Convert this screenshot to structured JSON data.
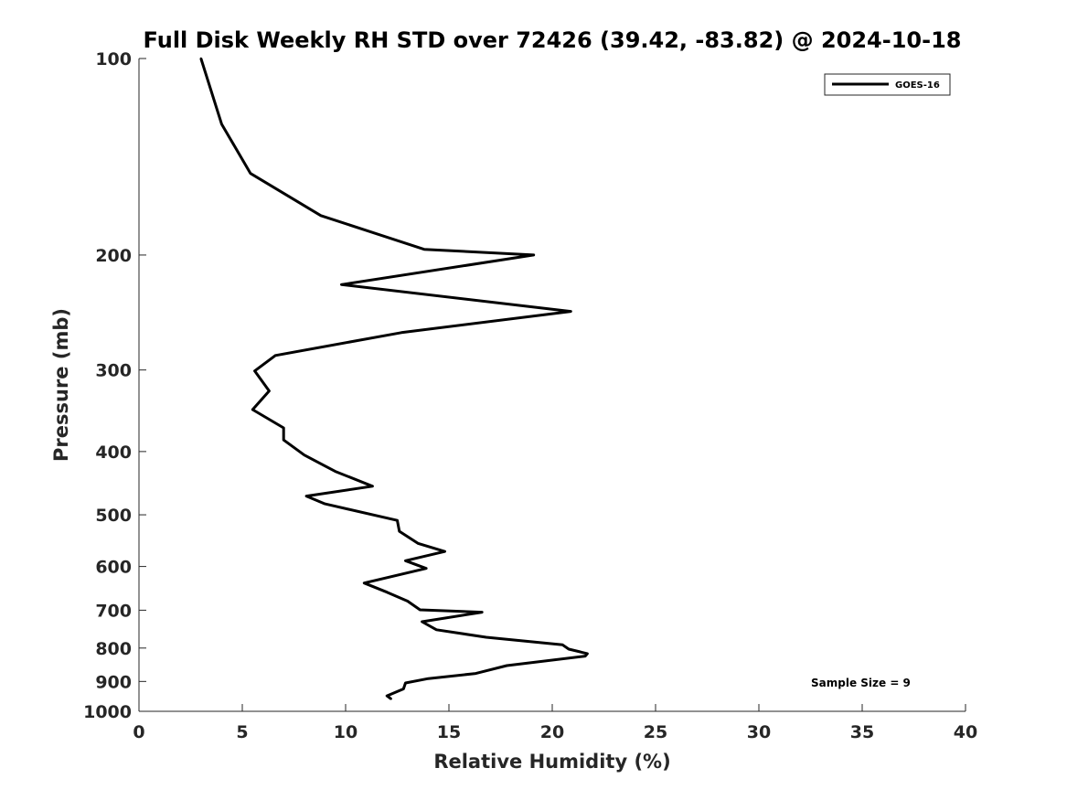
{
  "chart_data": {
    "type": "line",
    "title": "Full Disk Weekly RH STD over 72426 (39.42, -83.82) @ 2024-10-18",
    "xlabel": "Relative Humidity (%)",
    "ylabel": "Pressure (mb)",
    "xlim": [
      0,
      40
    ],
    "ylim": [
      100,
      1000
    ],
    "yscale": "log",
    "y_reversed": true,
    "xticks": [
      0,
      5,
      10,
      15,
      20,
      25,
      30,
      35,
      40
    ],
    "yticks": [
      100,
      200,
      300,
      400,
      500,
      600,
      700,
      800,
      900,
      1000
    ],
    "legend_position": "top-right",
    "grid": false,
    "annotation": "Sample Size = 9",
    "series": [
      {
        "name": "GOES-16",
        "color": "#000000",
        "points": [
          [
            3.0,
            100
          ],
          [
            4.0,
            126
          ],
          [
            5.4,
            150
          ],
          [
            8.8,
            174
          ],
          [
            13.8,
            196
          ],
          [
            19.1,
            200
          ],
          [
            9.8,
            222
          ],
          [
            20.9,
            244
          ],
          [
            12.7,
            263
          ],
          [
            6.6,
            285
          ],
          [
            5.6,
            301
          ],
          [
            6.3,
            323
          ],
          [
            5.5,
            345
          ],
          [
            7.0,
            368
          ],
          [
            7.0,
            384
          ],
          [
            8.0,
            405
          ],
          [
            9.5,
            429
          ],
          [
            11.3,
            452
          ],
          [
            8.1,
            468
          ],
          [
            9.0,
            481
          ],
          [
            12.5,
            510
          ],
          [
            12.6,
            530
          ],
          [
            13.5,
            553
          ],
          [
            14.8,
            569
          ],
          [
            12.9,
            588
          ],
          [
            13.9,
            604
          ],
          [
            10.9,
            636
          ],
          [
            12.0,
            657
          ],
          [
            13.0,
            678
          ],
          [
            13.6,
            699
          ],
          [
            16.6,
            705
          ],
          [
            13.7,
            729
          ],
          [
            14.4,
            750
          ],
          [
            16.8,
            770
          ],
          [
            20.5,
            791
          ],
          [
            20.8,
            803
          ],
          [
            21.7,
            816
          ],
          [
            21.6,
            823
          ],
          [
            17.8,
            851
          ],
          [
            16.3,
            875
          ],
          [
            14.0,
            891
          ],
          [
            12.9,
            905
          ],
          [
            12.8,
            924
          ],
          [
            12.0,
            947
          ],
          [
            12.2,
            957
          ]
        ]
      }
    ]
  }
}
